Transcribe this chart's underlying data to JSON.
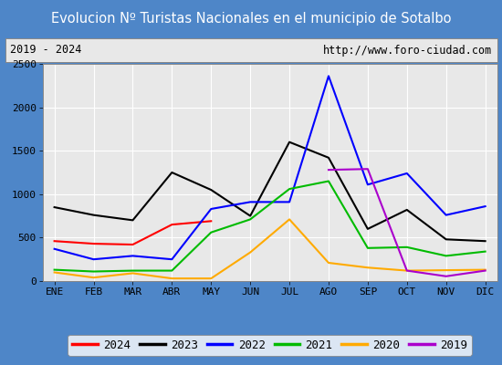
{
  "title": "Evolucion Nº Turistas Nacionales en el municipio de Sotalbo",
  "title_bg": "#4e86c8",
  "subtitle_left": "2019 - 2024",
  "subtitle_right": "http://www.foro-ciudad.com",
  "months": [
    "ENE",
    "FEB",
    "MAR",
    "ABR",
    "MAY",
    "JUN",
    "JUL",
    "AGO",
    "SEP",
    "OCT",
    "NOV",
    "DIC"
  ],
  "ylim": [
    0,
    2500
  ],
  "yticks": [
    0,
    500,
    1000,
    1500,
    2000,
    2500
  ],
  "series": {
    "2024": {
      "color": "#ff0000",
      "values": [
        460,
        430,
        420,
        650,
        690,
        null,
        null,
        null,
        null,
        null,
        null,
        null
      ]
    },
    "2023": {
      "color": "#000000",
      "values": [
        850,
        760,
        700,
        1250,
        1050,
        750,
        1600,
        1420,
        600,
        820,
        480,
        460
      ]
    },
    "2022": {
      "color": "#0000ff",
      "values": [
        370,
        250,
        290,
        250,
        830,
        910,
        910,
        2360,
        1110,
        1240,
        760,
        860
      ]
    },
    "2021": {
      "color": "#00bb00",
      "values": [
        130,
        110,
        120,
        120,
        560,
        710,
        1060,
        1150,
        380,
        390,
        290,
        340
      ]
    },
    "2020": {
      "color": "#ffaa00",
      "values": [
        100,
        40,
        90,
        30,
        30,
        330,
        710,
        210,
        155,
        120,
        125,
        130
      ]
    },
    "2019": {
      "color": "#aa00cc",
      "values": [
        null,
        null,
        null,
        null,
        null,
        null,
        null,
        1280,
        1290,
        120,
        55,
        120
      ]
    }
  },
  "legend_order": [
    "2024",
    "2023",
    "2022",
    "2021",
    "2020",
    "2019"
  ],
  "bg_color": "#ffffff",
  "plot_bg": "#e8e8e8",
  "grid_color": "#ffffff",
  "outer_border": "#4e86c8"
}
